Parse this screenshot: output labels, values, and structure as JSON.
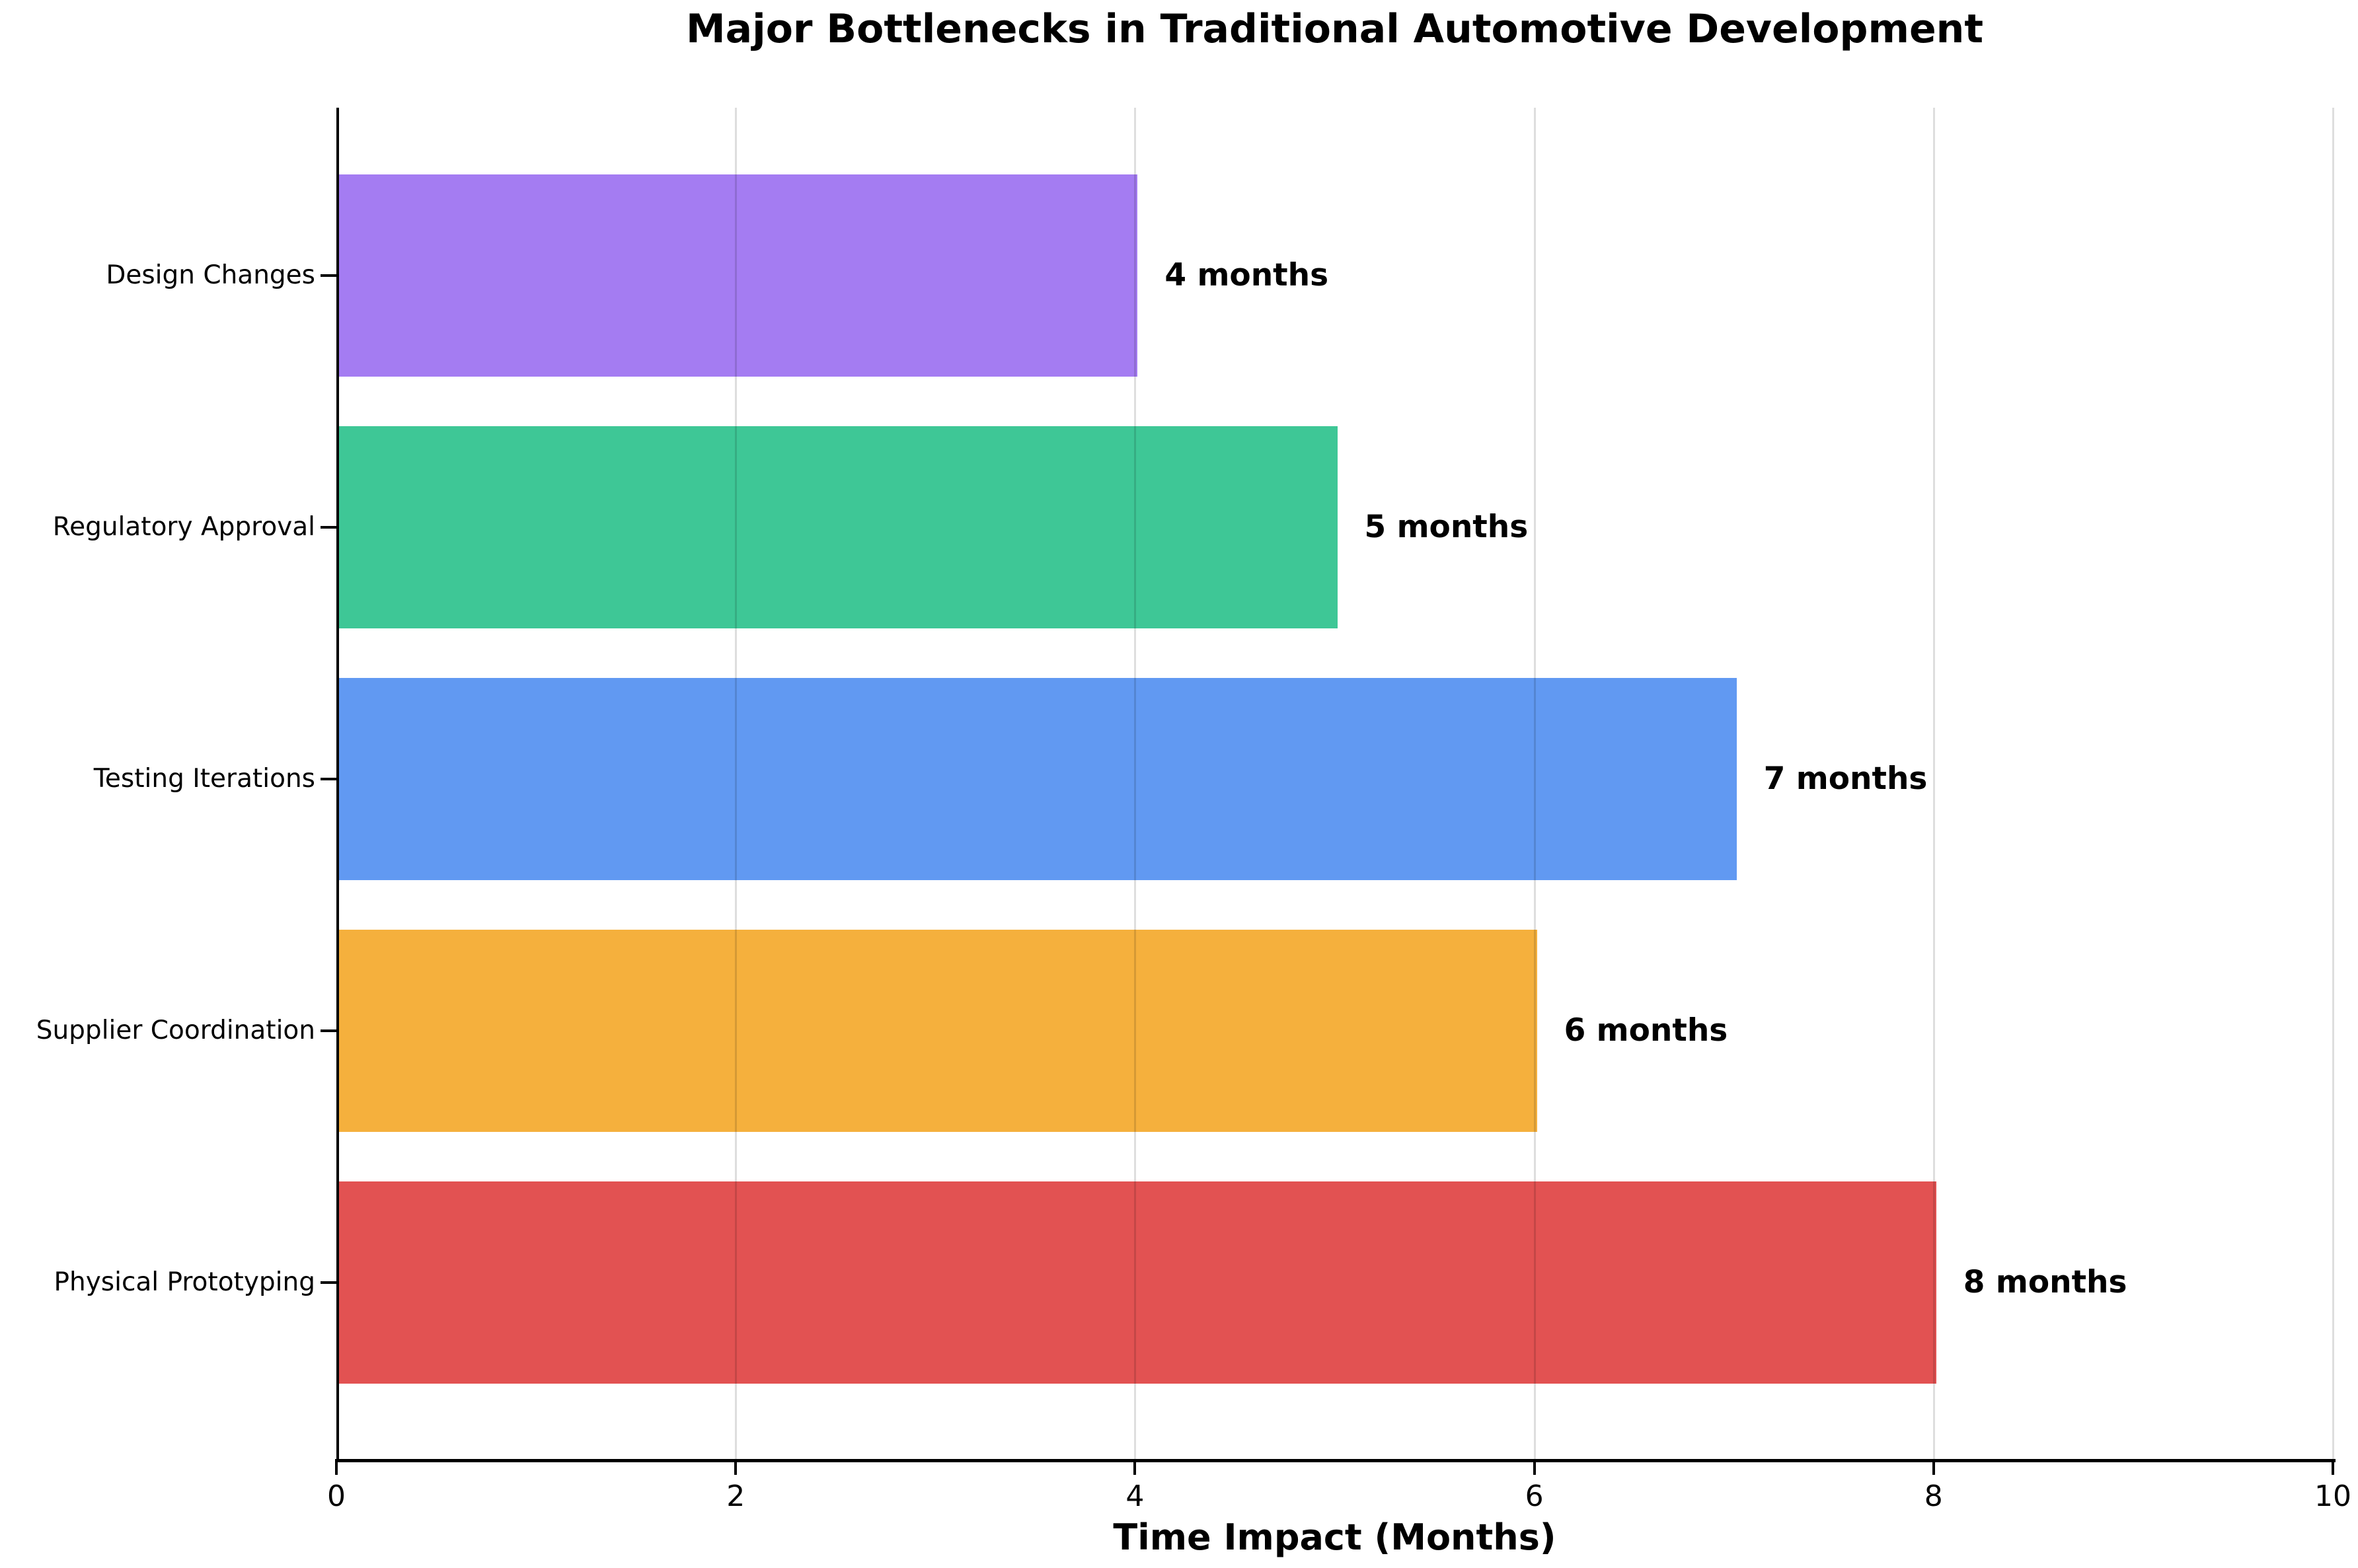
{
  "chart_data": {
    "type": "bar",
    "orientation": "horizontal",
    "title": "Major Bottlenecks in Traditional Automotive Development",
    "xlabel": "Time Impact (Months)",
    "ylabel": "",
    "categories": [
      "Design Changes",
      "Regulatory Approval",
      "Testing Iterations",
      "Supplier Coordination",
      "Physical Prototyping"
    ],
    "values": [
      4,
      5,
      7,
      6,
      8
    ],
    "value_labels": [
      "4 months",
      "5 months",
      "7 months",
      "6 months",
      "8 months"
    ],
    "bar_colors": [
      "#a47cf2",
      "#3ec796",
      "#6199f2",
      "#f5b03d",
      "#e25252"
    ],
    "xlim": [
      0,
      10
    ],
    "xticks": [
      0,
      2,
      4,
      6,
      8,
      10
    ],
    "grid": true,
    "grid_axis": "x",
    "legend": false,
    "background_color": "#ffffff",
    "text_color": "#000000"
  }
}
